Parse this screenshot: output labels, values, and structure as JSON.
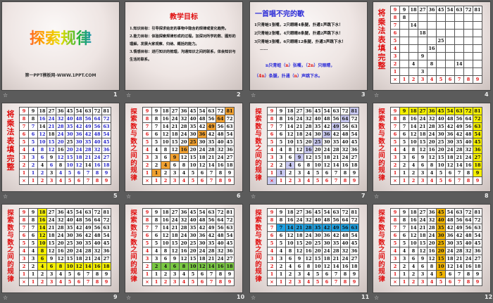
{
  "slides": [
    {
      "number": "1",
      "title": "探索规律",
      "subtitle": "第一PPT模板网-WWW.1PPT.COM"
    },
    {
      "number": "2",
      "heading": "教学目标",
      "items": [
        "1.知识目标：引导探求给定的事物中隐含的规律或变化趋势。",
        "2.能力目标：体验探索规律形成的过程，加深对所学的数、图形的理解，发展大家观察、归纳、概括的能力。",
        "3.情感目标：进行知识的梳理，沟通知识之间的联系，体会知识与生活的联系。"
      ]
    },
    {
      "number": "3",
      "heading": "一首唱不完的歌",
      "lines": [
        "1只青蛙1张嘴，2只眼睛4条腿，扑通1声跳下水！",
        "2只青蛙2张嘴，4只眼睛8条腿，扑通2声跳下水！",
        "3只青蛙3张嘴，6只眼睛12条腿，扑通3声跳下水！",
        "……"
      ],
      "conclusion": {
        "p1": "n只青蛙（",
        "a1": "n",
        "p2": "）张嘴，（",
        "a2": "2n",
        "p3": "）只眼睛，",
        "p4": "（",
        "a3": "4n",
        "p5": "）条腿，扑通（",
        "a4": "n",
        "p6": "）声跳下水。"
      }
    },
    {
      "number": "4",
      "side_label": "将乘法表填完整",
      "table": "sparse"
    },
    {
      "number": "5",
      "side_label": "将乘法表填完整",
      "table": "full",
      "mode": "filled"
    },
    {
      "number": "6",
      "side_label": "探索数与数之间的规律",
      "table": "full",
      "highlight": "diagonal",
      "color": "#f0a030"
    },
    {
      "number": "7",
      "side_label": "探索数与数之间的规律",
      "table": "full",
      "highlight": "anti-diagonal",
      "color": "#c8c8f0"
    },
    {
      "number": "8",
      "side_label": "探索数与数之间的规律",
      "table": "full",
      "highlight": "row9-col9",
      "color": "#f5f000"
    },
    {
      "number": "9",
      "side_label": "探索数与数之间的规律",
      "table": "full",
      "highlight": "row2-col2",
      "color": "#f5f000"
    },
    {
      "number": "10",
      "side_label": "探索数与数之间的规律",
      "table": "full",
      "highlight": "row2",
      "color": "#7ac843"
    },
    {
      "number": "11",
      "side_label": "探索数与数之间的规律",
      "table": "full",
      "highlight": "row7",
      "color": "#1ea0e0"
    },
    {
      "number": "12",
      "side_label": "探索数与数之间的规律",
      "table": "full",
      "highlight": "col5",
      "color": "#f0b400"
    }
  ],
  "table": {
    "row_labels": [
      "9",
      "8",
      "7",
      "6",
      "5",
      "4",
      "3",
      "2",
      "1"
    ],
    "column_labels": [
      "1",
      "2",
      "3",
      "4",
      "5",
      "6",
      "7",
      "8",
      "9"
    ],
    "corner": "×",
    "full_rows": [
      [
        "9",
        "18",
        "27",
        "36",
        "45",
        "54",
        "63",
        "72",
        "81"
      ],
      [
        "8",
        "16",
        "24",
        "32",
        "40",
        "48",
        "56",
        "64",
        "72"
      ],
      [
        "7",
        "14",
        "21",
        "28",
        "35",
        "42",
        "49",
        "56",
        "63"
      ],
      [
        "6",
        "12",
        "18",
        "24",
        "30",
        "36",
        "42",
        "48",
        "54"
      ],
      [
        "5",
        "10",
        "15",
        "20",
        "25",
        "30",
        "35",
        "40",
        "45"
      ],
      [
        "4",
        "8",
        "12",
        "16",
        "20",
        "24",
        "28",
        "32",
        "36"
      ],
      [
        "3",
        "6",
        "9",
        "12",
        "15",
        "18",
        "21",
        "24",
        "27"
      ],
      [
        "2",
        "4",
        "6",
        "8",
        "10",
        "12",
        "14",
        "16",
        "18"
      ],
      [
        "1",
        "2",
        "3",
        "4",
        "5",
        "6",
        "7",
        "8",
        "9"
      ]
    ],
    "sparse_rows": [
      [
        "9",
        "18",
        "27",
        "36",
        "45",
        "54",
        "63",
        "72",
        "81"
      ],
      [
        "8",
        "",
        "",
        "",
        "",
        "",
        "",
        "",
        ""
      ],
      [
        "",
        "14",
        "",
        "",
        "",
        "",
        "",
        "",
        ""
      ],
      [
        "",
        "",
        "18",
        "",
        "",
        "",
        "",
        "",
        ""
      ],
      [
        "",
        "",
        "",
        "",
        "25",
        "",
        "",
        "",
        ""
      ],
      [
        "",
        "",
        "",
        "16",
        "",
        "",
        "",
        "",
        ""
      ],
      [
        "",
        "",
        "9",
        "",
        "",
        "",
        "",
        "",
        ""
      ],
      [
        "",
        "4",
        "",
        "8",
        "",
        "",
        "14",
        "",
        ""
      ],
      [
        "",
        "",
        "3",
        "",
        "",
        "",
        "",
        "",
        ""
      ]
    ],
    "given_color": "#111111",
    "filled_color": "#2020c8",
    "header_color": "#e01010"
  }
}
